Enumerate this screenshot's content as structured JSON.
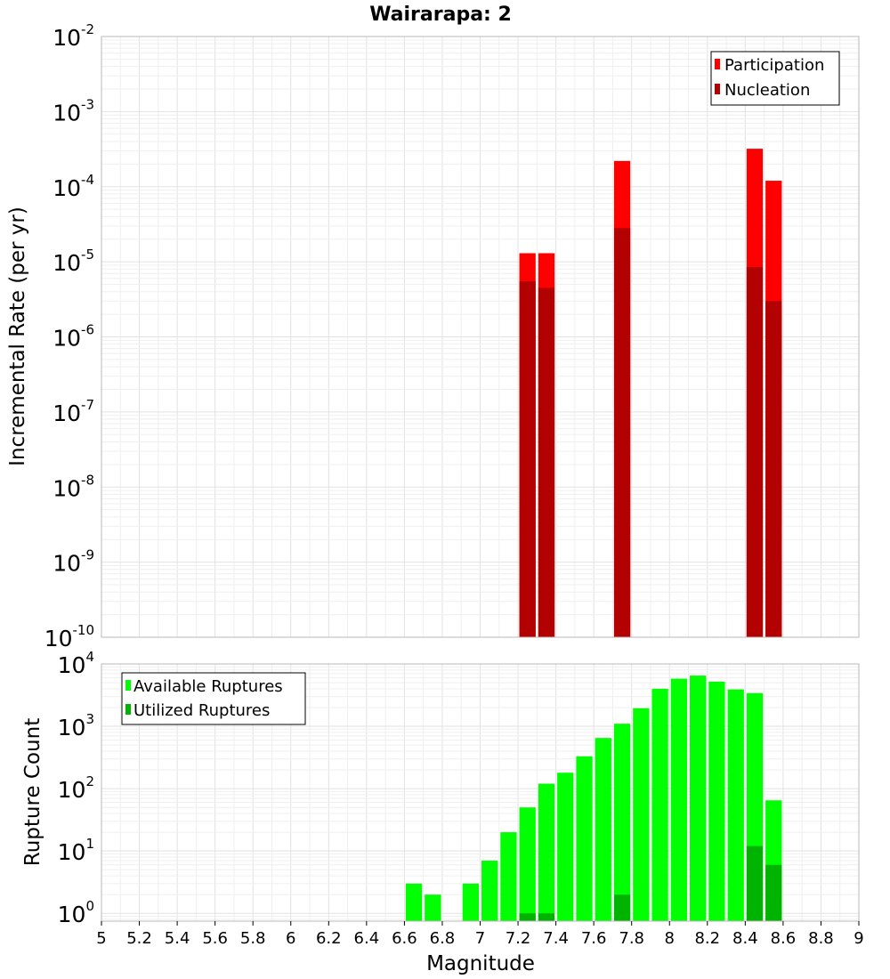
{
  "chart_data": [
    {
      "type": "bar",
      "title": "Wairarapa: 2",
      "ylabel": "Incremental Rate (per yr)",
      "xlabel": "",
      "scale_y": "log",
      "xlim": [
        5,
        9
      ],
      "ylim": [
        1e-10,
        0.01
      ],
      "bin_width": 0.1,
      "grid": true,
      "legend_position": "top-right",
      "y_ticks": [
        {
          "base": "10",
          "exp": "-2"
        },
        {
          "base": "10",
          "exp": "-3"
        },
        {
          "base": "10",
          "exp": "-4"
        },
        {
          "base": "10",
          "exp": "-5"
        },
        {
          "base": "10",
          "exp": "-6"
        },
        {
          "base": "10",
          "exp": "-7"
        },
        {
          "base": "10",
          "exp": "-8"
        },
        {
          "base": "10",
          "exp": "-9"
        },
        {
          "base": "10",
          "exp": "-10"
        }
      ],
      "series": [
        {
          "name": "Participation",
          "color": "#ff0000",
          "x": [
            7.25,
            7.35,
            7.75,
            8.45,
            8.55
          ],
          "values": [
            1.3e-05,
            1.3e-05,
            0.00022,
            0.00032,
            0.00012
          ]
        },
        {
          "name": "Nucleation",
          "color": "#b30000",
          "x": [
            7.25,
            7.35,
            7.75,
            8.45,
            8.55
          ],
          "values": [
            5.5e-06,
            4.5e-06,
            2.8e-05,
            8.5e-06,
            3e-06
          ]
        }
      ]
    },
    {
      "type": "bar",
      "title": "",
      "ylabel": "Rupture Count",
      "xlabel": "Magnitude",
      "scale_y": "log",
      "xlim": [
        5,
        9
      ],
      "ylim": [
        0.75,
        10000
      ],
      "bin_width": 0.1,
      "grid": true,
      "legend_position": "top-left",
      "x_ticks": [
        "5",
        "5.2",
        "5.4",
        "5.6",
        "5.8",
        "6",
        "6.2",
        "6.4",
        "6.6",
        "6.8",
        "7",
        "7.2",
        "7.4",
        "7.6",
        "7.8",
        "8",
        "8.2",
        "8.4",
        "8.6",
        "8.8",
        "9"
      ],
      "y_ticks": [
        {
          "base": "10",
          "exp": "4"
        },
        {
          "base": "10",
          "exp": "3"
        },
        {
          "base": "10",
          "exp": "2"
        },
        {
          "base": "10",
          "exp": "1"
        },
        {
          "base": "10",
          "exp": "0"
        }
      ],
      "series": [
        {
          "name": "Available Ruptures",
          "color": "#00ff00",
          "x": [
            6.65,
            6.75,
            6.95,
            7.05,
            7.15,
            7.25,
            7.35,
            7.45,
            7.55,
            7.65,
            7.75,
            7.85,
            7.95,
            8.05,
            8.15,
            8.25,
            8.35,
            8.45,
            8.55
          ],
          "values": [
            3,
            2,
            3,
            7,
            20,
            50,
            120,
            180,
            330,
            650,
            1100,
            1950,
            4000,
            5800,
            6500,
            5200,
            3900,
            3400,
            65
          ]
        },
        {
          "name": "Utilized Ruptures",
          "color": "#00b300",
          "x": [
            7.25,
            7.35,
            7.75,
            8.45,
            8.55
          ],
          "values": [
            1,
            1,
            2,
            12,
            6
          ]
        }
      ]
    }
  ]
}
